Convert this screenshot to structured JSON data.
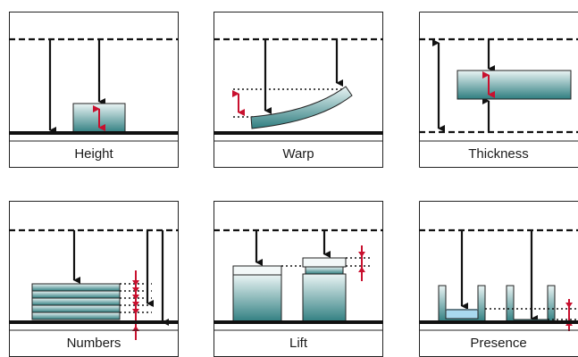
{
  "panels": [
    {
      "label": "Height"
    },
    {
      "label": "Warp"
    },
    {
      "label": "Thickness"
    },
    {
      "label": "Numbers"
    },
    {
      "label": "Lift"
    },
    {
      "label": "Presence"
    }
  ],
  "colors": {
    "frame": "#222222",
    "arrow": "#111111",
    "measure": "#c8102e",
    "object_dark": "#2f7e80",
    "object_light": "#eaf4f4",
    "liquid": "#a9d9ee"
  }
}
